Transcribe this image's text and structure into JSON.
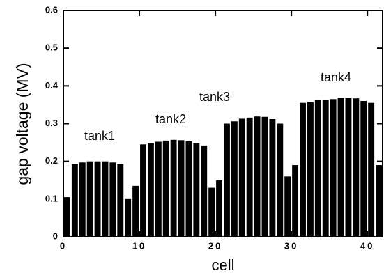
{
  "chart_data": {
    "type": "bar",
    "x_label": "cell",
    "y_label": "gap voltage (MV)",
    "annotations": [
      "tank1",
      "tank2",
      "tank3",
      "tank4"
    ],
    "color": "#000000",
    "x": [
      0,
      1,
      2,
      3,
      4,
      5,
      6,
      7,
      8,
      9,
      10,
      11,
      12,
      13,
      14,
      15,
      16,
      17,
      18,
      19,
      20,
      21,
      22,
      23,
      24,
      25,
      26,
      27,
      28,
      29,
      30,
      31,
      32,
      33,
      34,
      35,
      36,
      37,
      38,
      39,
      40,
      41
    ],
    "values": [
      0.105,
      0.193,
      0.197,
      0.2,
      0.2,
      0.2,
      0.197,
      0.193,
      0.1,
      0.135,
      0.245,
      0.248,
      0.252,
      0.255,
      0.257,
      0.256,
      0.253,
      0.248,
      0.242,
      0.13,
      0.15,
      0.3,
      0.306,
      0.313,
      0.316,
      0.319,
      0.318,
      0.312,
      0.3,
      0.16,
      0.19,
      0.355,
      0.357,
      0.362,
      0.362,
      0.365,
      0.368,
      0.368,
      0.367,
      0.36,
      0.355,
      0.19
    ],
    "xlim": [
      0,
      42
    ],
    "xticks": [
      0,
      10,
      20,
      30,
      40
    ],
    "ylim": [
      0,
      0.6
    ],
    "yticks": [
      0,
      0.1,
      0.2,
      0.3,
      0.4,
      0.5,
      0.6
    ]
  }
}
